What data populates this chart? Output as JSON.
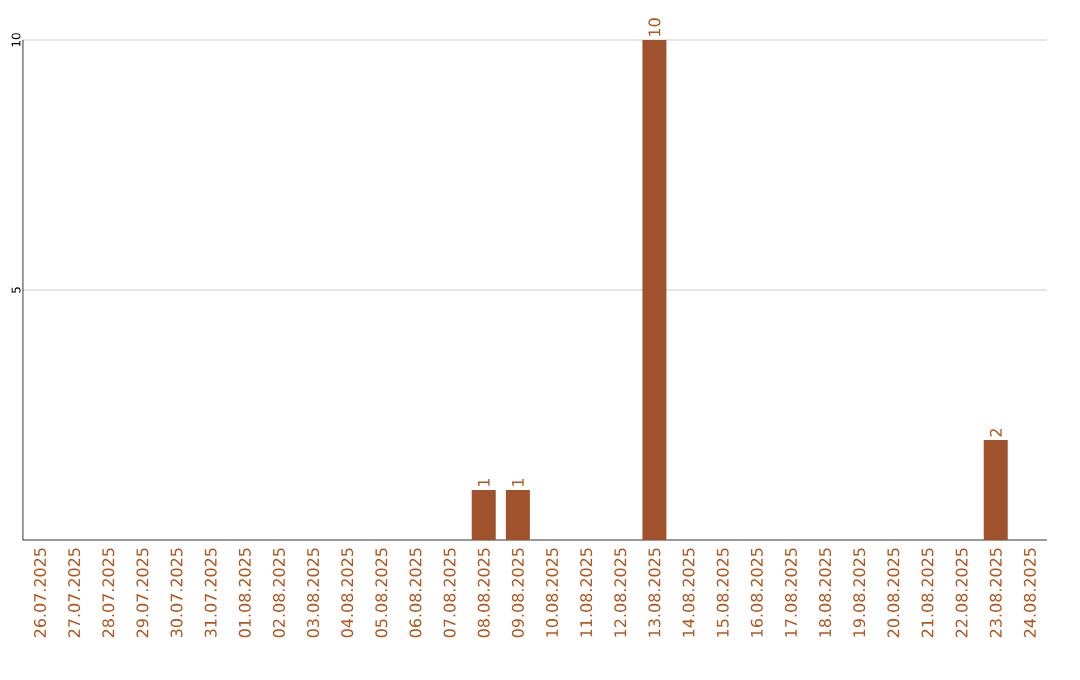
{
  "chart_data": {
    "type": "bar",
    "categories": [
      "26.07.2025",
      "27.07.2025",
      "28.07.2025",
      "29.07.2025",
      "30.07.2025",
      "31.07.2025",
      "01.08.2025",
      "02.08.2025",
      "03.08.2025",
      "04.08.2025",
      "05.08.2025",
      "06.08.2025",
      "07.08.2025",
      "08.08.2025",
      "09.08.2025",
      "10.08.2025",
      "11.08.2025",
      "12.08.2025",
      "13.08.2025",
      "14.08.2025",
      "15.08.2025",
      "16.08.2025",
      "17.08.2025",
      "18.08.2025",
      "19.08.2025",
      "20.08.2025",
      "21.08.2025",
      "22.08.2025",
      "23.08.2025",
      "24.08.2025"
    ],
    "values": [
      0,
      0,
      0,
      0,
      0,
      0,
      0,
      0,
      0,
      0,
      0,
      0,
      0,
      1,
      1,
      0,
      0,
      0,
      10,
      0,
      0,
      0,
      0,
      0,
      0,
      0,
      0,
      0,
      2,
      0
    ],
    "value_labels": [
      null,
      null,
      null,
      null,
      null,
      null,
      null,
      null,
      null,
      null,
      null,
      null,
      null,
      "1",
      "1",
      null,
      null,
      null,
      "10",
      null,
      null,
      null,
      null,
      null,
      null,
      null,
      null,
      null,
      "2",
      null
    ],
    "color": "#a0522d",
    "ylim": [
      0,
      10
    ],
    "yticks": [
      5,
      10
    ],
    "grid": "y"
  }
}
